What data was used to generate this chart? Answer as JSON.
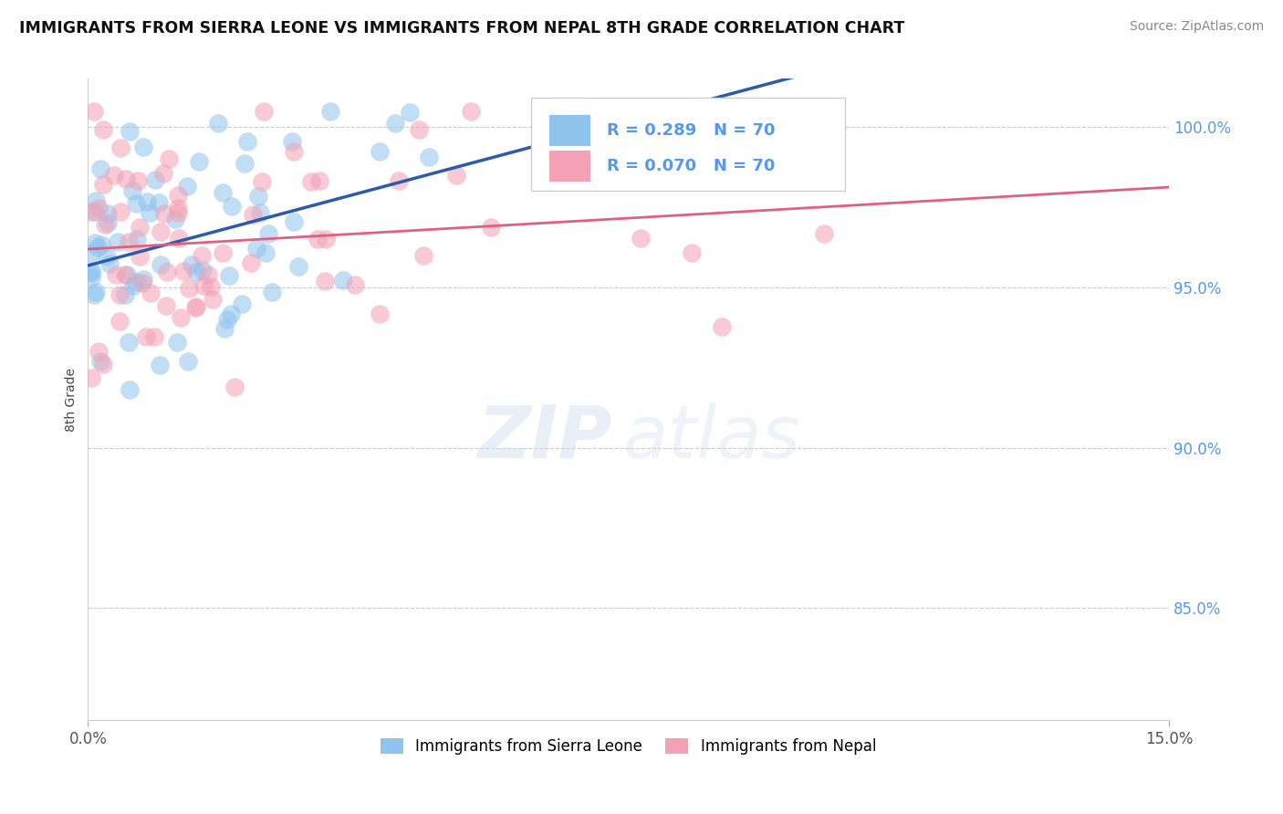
{
  "title": "IMMIGRANTS FROM SIERRA LEONE VS IMMIGRANTS FROM NEPAL 8TH GRADE CORRELATION CHART",
  "source": "Source: ZipAtlas.com",
  "ylabel": "8th Grade",
  "y_tick_vals": [
    1.0,
    0.95,
    0.9,
    0.85
  ],
  "y_tick_labels": [
    "100.0%",
    "95.0%",
    "90.0%",
    "85.0%"
  ],
  "xlim": [
    0.0,
    15.0
  ],
  "ylim": [
    0.815,
    1.015
  ],
  "color_blue": "#8EC4EE",
  "color_pink": "#F4A0B5",
  "color_line_blue": "#2B5BAA",
  "color_line_pink": "#E06080",
  "color_tick": "#5599EE",
  "watermark_zip": "ZIP",
  "watermark_atlas": "atlas",
  "legend_r_blue": "0.289",
  "legend_r_pink": "0.070",
  "legend_n": "70",
  "bottom_label_blue": "Immigrants from Sierra Leone",
  "bottom_label_pink": "Immigrants from Nepal"
}
